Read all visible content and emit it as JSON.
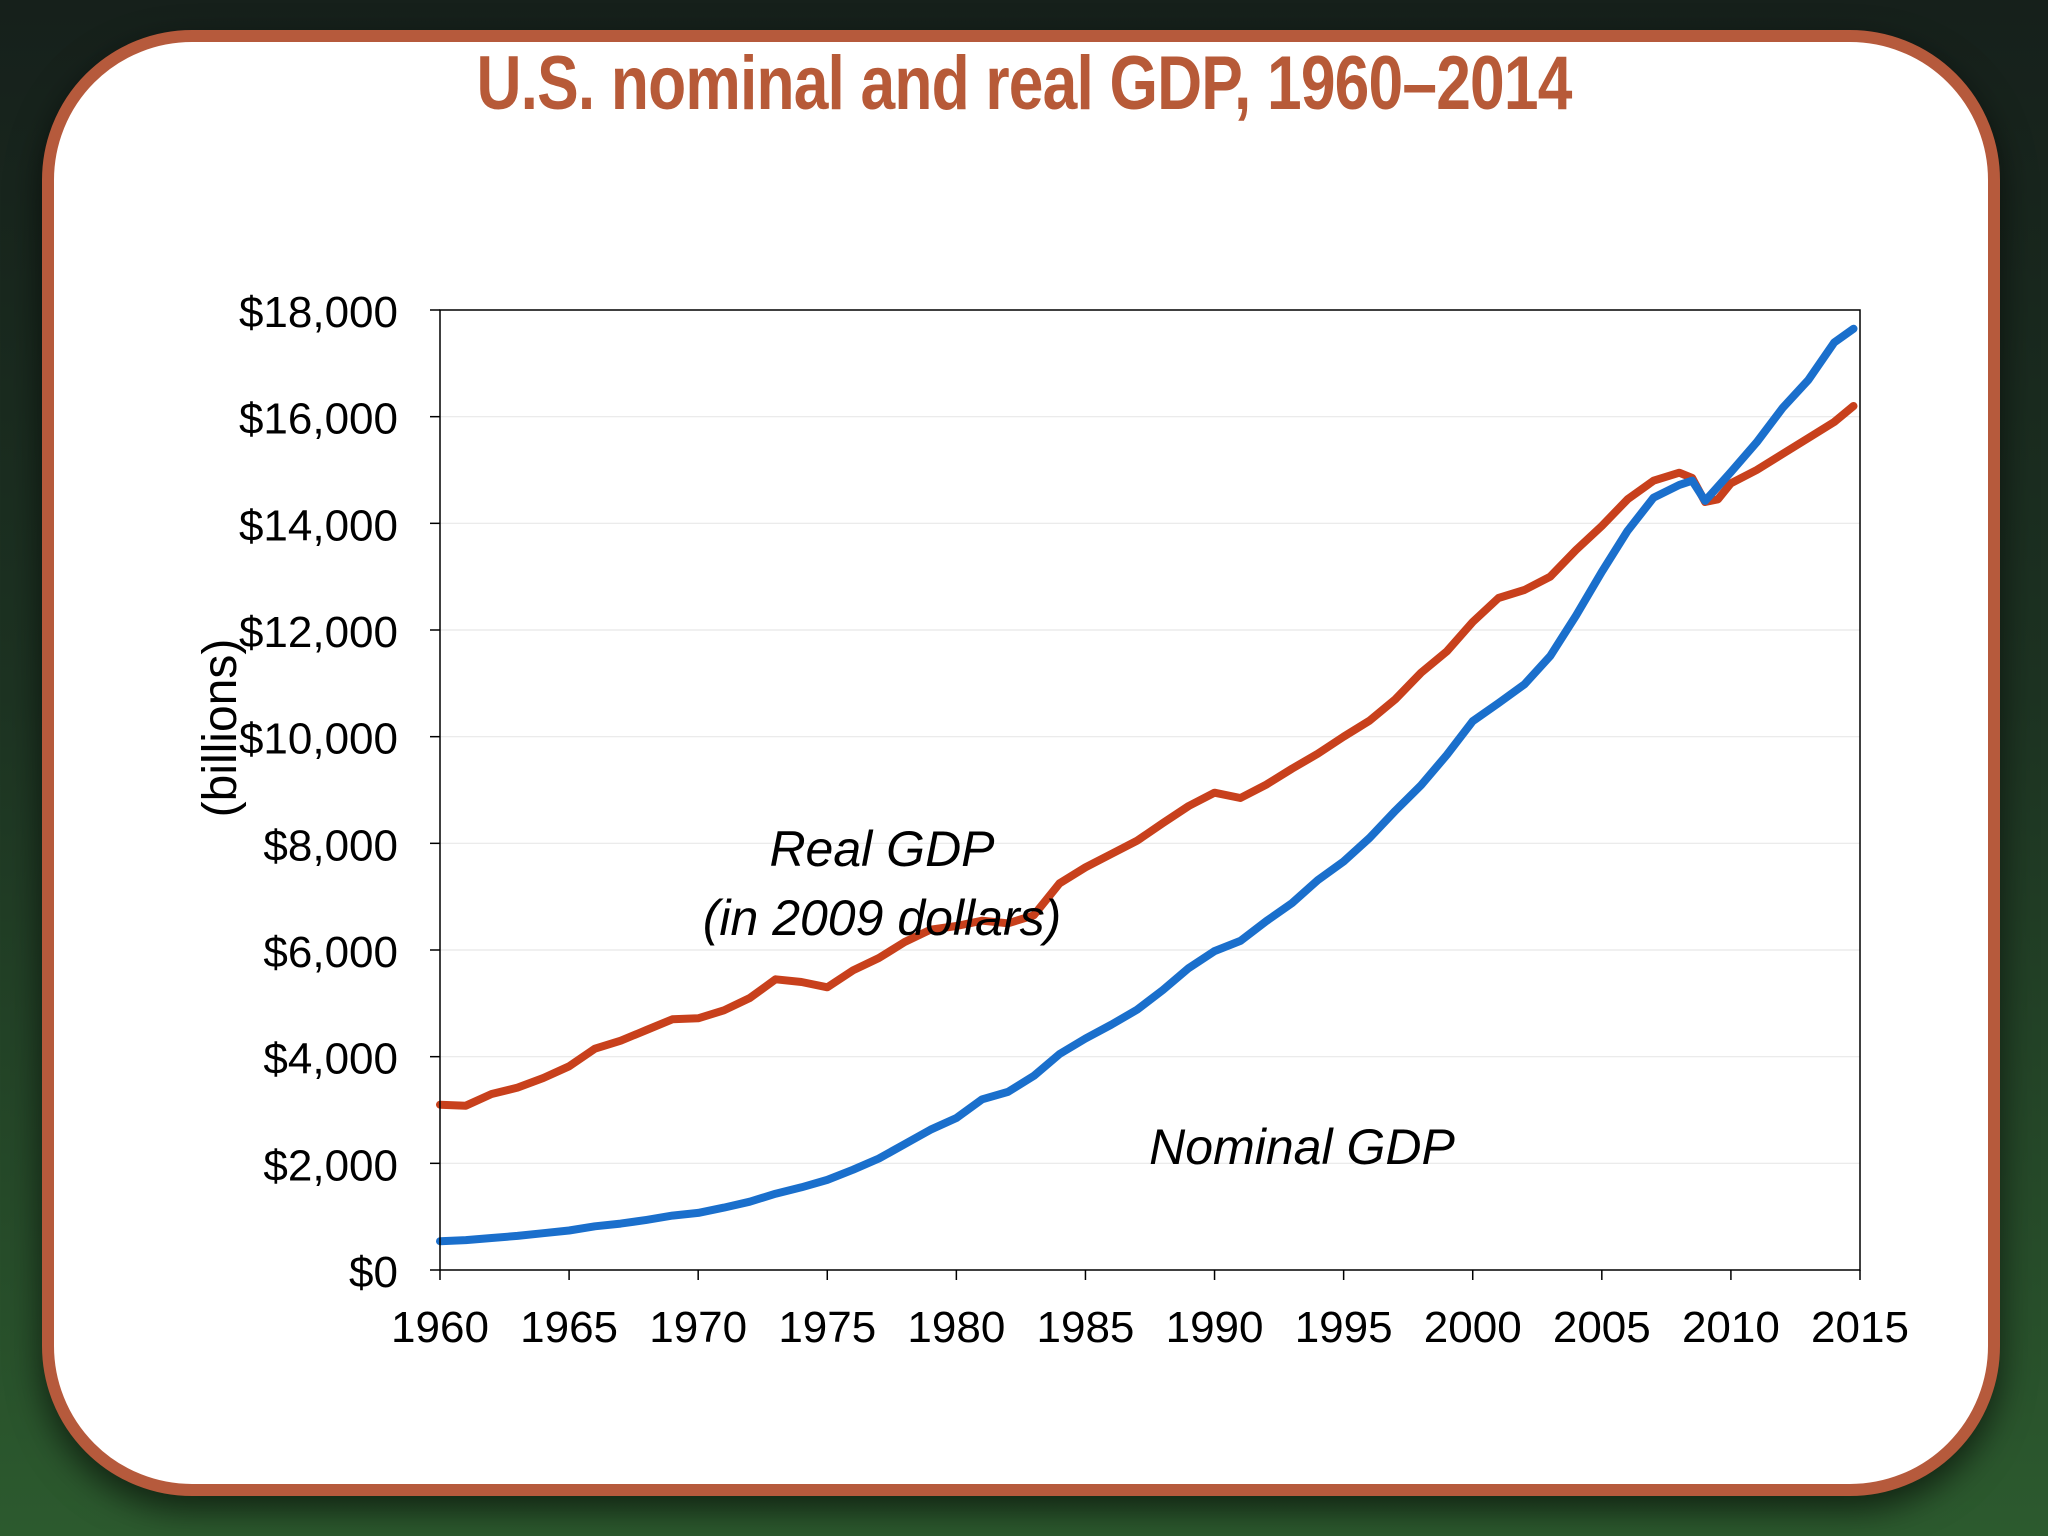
{
  "slide": {
    "title": "U.S. nominal and real GDP, 1960–2014"
  },
  "colors": {
    "real": "#c8401c",
    "nominal": "#1a6fcc",
    "border": "#b65a3c",
    "title": "#b75a38"
  },
  "chart_data": {
    "type": "line",
    "title": "U.S. nominal and real GDP, 1960–2014",
    "xlabel": "",
    "ylabel": "(billions)",
    "xlim": [
      1960,
      2015
    ],
    "ylim": [
      0,
      18000
    ],
    "grid": true,
    "x_ticks": [
      "1960",
      "1965",
      "1970",
      "1975",
      "1980",
      "1985",
      "1990",
      "1995",
      "2000",
      "2005",
      "2010",
      "2015"
    ],
    "y_ticks": [
      "$0",
      "$2,000",
      "$4,000",
      "$6,000",
      "$8,000",
      "$10,000",
      "$12,000",
      "$14,000",
      "$16,000",
      "$18,000"
    ],
    "series": [
      {
        "key": "real",
        "x": [
          1960,
          1961,
          1962,
          1963,
          1964,
          1965,
          1966,
          1967,
          1968,
          1969,
          1970,
          1971,
          1972,
          1973,
          1974,
          1975,
          1976,
          1977,
          1978,
          1979,
          1980,
          1981,
          1982,
          1983,
          1984,
          1985,
          1986,
          1987,
          1988,
          1989,
          1990,
          1991,
          1992,
          1993,
          1994,
          1995,
          1996,
          1997,
          1998,
          1999,
          2000,
          2001,
          2002,
          2003,
          2004,
          2005,
          2006,
          2007,
          2008,
          2008.5,
          2009,
          2009.5,
          2010,
          2011,
          2012,
          2013,
          2014,
          2014.75
        ],
        "values": [
          3100,
          3080,
          3300,
          3420,
          3600,
          3820,
          4150,
          4300,
          4500,
          4700,
          4720,
          4870,
          5100,
          5450,
          5400,
          5300,
          5620,
          5850,
          6150,
          6380,
          6450,
          6550,
          6500,
          6650,
          7250,
          7550,
          7800,
          8050,
          8380,
          8700,
          8950,
          8850,
          9100,
          9400,
          9680,
          10000,
          10300,
          10700,
          11200,
          11600,
          12150,
          12600,
          12750,
          13000,
          13500,
          13950,
          14450,
          14800,
          14950,
          14850,
          14400,
          14450,
          14750,
          15000,
          15300,
          15600,
          15900,
          16200
        ]
      },
      {
        "key": "nominal",
        "x": [
          1960,
          1961,
          1962,
          1963,
          1964,
          1965,
          1966,
          1967,
          1968,
          1969,
          1970,
          1971,
          1972,
          1973,
          1974,
          1975,
          1976,
          1977,
          1978,
          1979,
          1980,
          1981,
          1982,
          1983,
          1984,
          1985,
          1986,
          1987,
          1988,
          1989,
          1990,
          1991,
          1992,
          1993,
          1994,
          1995,
          1996,
          1997,
          1998,
          1999,
          2000,
          2001,
          2002,
          2003,
          2004,
          2005,
          2006,
          2007,
          2008,
          2008.5,
          2009,
          2010,
          2011,
          2012,
          2013,
          2014,
          2014.75
        ],
        "values": [
          540,
          560,
          600,
          640,
          690,
          740,
          820,
          870,
          940,
          1020,
          1070,
          1170,
          1280,
          1430,
          1550,
          1690,
          1880,
          2090,
          2360,
          2630,
          2850,
          3200,
          3340,
          3640,
          4050,
          4340,
          4600,
          4880,
          5250,
          5660,
          5980,
          6170,
          6540,
          6880,
          7310,
          7660,
          8100,
          8610,
          9090,
          9660,
          10290,
          10630,
          10980,
          11510,
          12270,
          13090,
          13860,
          14480,
          14720,
          14800,
          14420,
          14960,
          15520,
          16160,
          16690,
          17390,
          17650
        ]
      }
    ],
    "annotations": {
      "real_line1": "Real GDP",
      "real_line2": "(in 2009 dollars)",
      "nominal": "Nominal GDP"
    }
  }
}
